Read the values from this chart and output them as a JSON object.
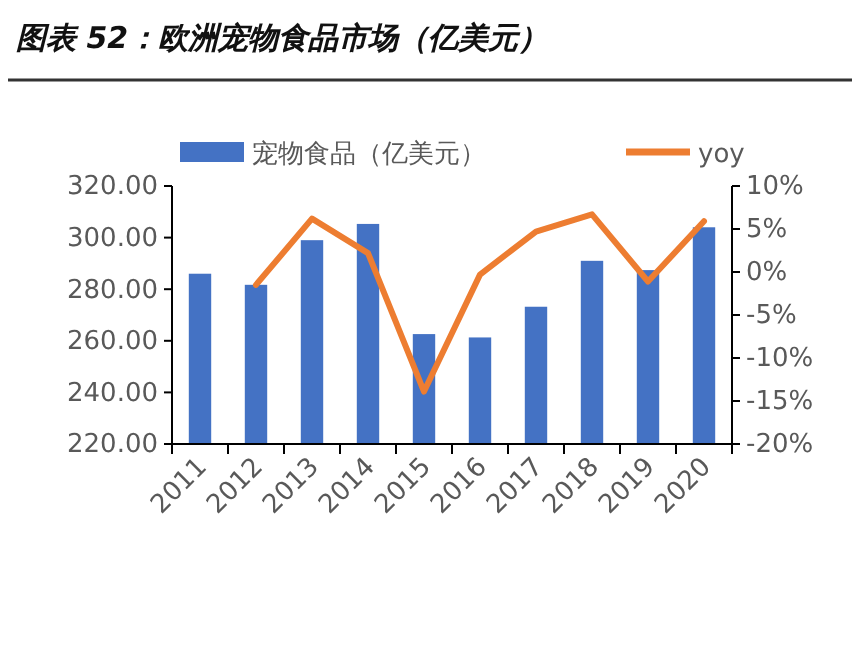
{
  "chart_data": {
    "type": "bar",
    "title": "图表 52：欧洲宠物食品市场（亿美元）",
    "categories": [
      "2011",
      "2012",
      "2013",
      "2014",
      "2015",
      "2016",
      "2017",
      "2018",
      "2019",
      "2020"
    ],
    "series": [
      {
        "name": "宠物食品（亿美元）",
        "color": "#4472c4",
        "values": [
          286,
          281.7,
          299,
          305.3,
          262.6,
          261.3,
          273.2,
          291,
          287.4,
          304
        ]
      },
      {
        "name": "yoy",
        "type": "line",
        "axis": "y2",
        "color": "#ed7d31",
        "values": [
          null,
          -1.5,
          6.2,
          2.2,
          -13.9,
          -0.3,
          4.7,
          6.7,
          -1.1,
          5.9
        ]
      }
    ],
    "ylim": [
      220,
      320
    ],
    "yticks": [
      {
        "value": 220,
        "label": "220.00"
      },
      {
        "value": 240,
        "label": "240.00"
      },
      {
        "value": 260,
        "label": "260.00"
      },
      {
        "value": 280,
        "label": "280.00"
      },
      {
        "value": 300,
        "label": "300.00"
      },
      {
        "value": 320,
        "label": "320.00"
      }
    ],
    "y2lim": [
      -20,
      10
    ],
    "y2ticks": [
      {
        "value": -20,
        "label": "-20%"
      },
      {
        "value": -15,
        "label": "-15%"
      },
      {
        "value": -10,
        "label": "-10%"
      },
      {
        "value": -5,
        "label": "-5%"
      },
      {
        "value": 0,
        "label": "0%"
      },
      {
        "value": 5,
        "label": "5%"
      },
      {
        "value": 10,
        "label": "10%"
      }
    ],
    "legend": "top",
    "grid": false
  }
}
